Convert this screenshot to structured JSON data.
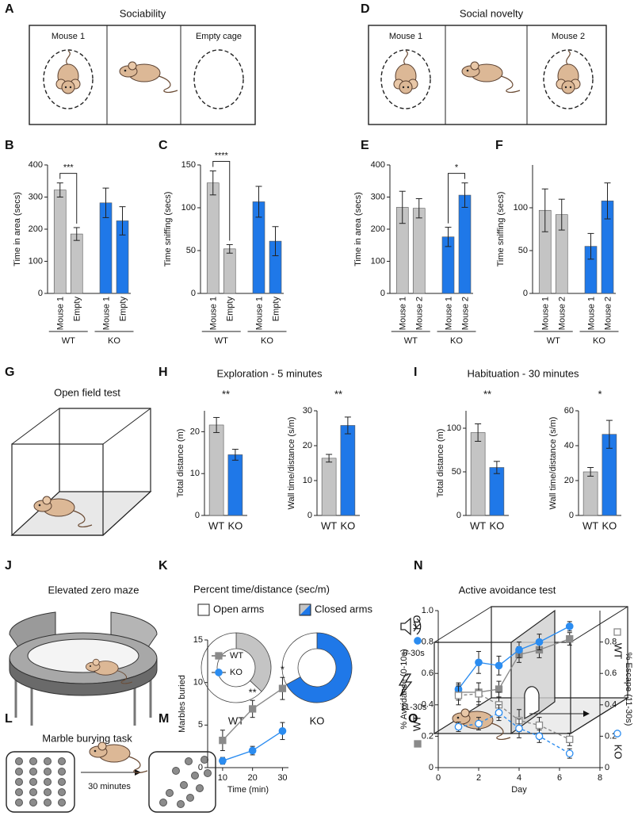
{
  "diagrams": [
    {
      "panel": "A",
      "title": "Sociability",
      "labels": [
        "Mouse 1",
        "Empty cage"
      ]
    },
    {
      "panel": "D",
      "title": "Social novelty",
      "labels": [
        "Mouse 1",
        "Mouse 2"
      ]
    },
    {
      "panel": "G",
      "title": "Open field test"
    },
    {
      "panel": "J",
      "title": "Elevated zero maze"
    },
    {
      "panel": "N",
      "title": "Active avoidance test",
      "labels": [
        "0-30s",
        "11-30s"
      ]
    },
    {
      "panel": "L",
      "title": "Marble burying task",
      "labels": [
        "30 minutes"
      ]
    }
  ],
  "chart_data": [
    {
      "panel": "B",
      "type": "bar",
      "categories": [
        "Mouse 1",
        "Empty",
        "Mouse 1",
        "Empty"
      ],
      "groups": [
        "WT",
        "KO"
      ],
      "values": [
        322,
        185,
        282,
        226
      ],
      "errors": [
        22,
        20,
        46,
        44
      ],
      "colors": [
        "#c4c4c4",
        "#c4c4c4",
        "#1f78e8",
        "#1f78e8"
      ],
      "ylabel": "Time in area (secs)",
      "ylim": [
        0,
        400
      ],
      "yticks": [
        0,
        100,
        200,
        300,
        400
      ],
      "annotations": [
        "***"
      ]
    },
    {
      "panel": "C",
      "type": "bar",
      "categories": [
        "Mouse 1",
        "Empty",
        "Mouse 1",
        "Empty"
      ],
      "groups": [
        "WT",
        "KO"
      ],
      "values": [
        129,
        52,
        107,
        61
      ],
      "errors": [
        14,
        5,
        18,
        17
      ],
      "colors": [
        "#c4c4c4",
        "#c4c4c4",
        "#1f78e8",
        "#1f78e8"
      ],
      "ylabel": "Time sniffing (secs)",
      "ylim": [
        0,
        150
      ],
      "yticks": [
        0,
        50,
        100,
        150
      ],
      "annotations": [
        "****"
      ]
    },
    {
      "panel": "E",
      "type": "bar",
      "categories": [
        "Mouse 1",
        "Mouse 2",
        "Mouse 1",
        "Mouse 2"
      ],
      "groups": [
        "WT",
        "KO"
      ],
      "values": [
        268,
        265,
        176,
        306
      ],
      "errors": [
        50,
        30,
        30,
        38
      ],
      "colors": [
        "#c4c4c4",
        "#c4c4c4",
        "#1f78e8",
        "#1f78e8"
      ],
      "ylabel": "Time in area (secs)",
      "ylim": [
        0,
        400
      ],
      "yticks": [
        0,
        100,
        200,
        300,
        400
      ],
      "annotations": [
        "*"
      ]
    },
    {
      "panel": "F",
      "type": "bar",
      "categories": [
        "Mouse 1",
        "Mouse 2",
        "Mouse 1",
        "Mouse 2"
      ],
      "groups": [
        "WT",
        "KO"
      ],
      "values": [
        97,
        92,
        55,
        108
      ],
      "errors": [
        25,
        18,
        15,
        21
      ],
      "colors": [
        "#c4c4c4",
        "#c4c4c4",
        "#1f78e8",
        "#1f78e8"
      ],
      "ylabel": "Time sniffing (secs)",
      "ylim": [
        0,
        150
      ],
      "yticks": [
        0,
        50,
        100
      ]
    },
    {
      "panel": "H",
      "type": "bar",
      "title": "Exploration - 5 minutes",
      "categories": [
        "WT",
        "KO"
      ],
      "values": [
        21.6,
        14.5
      ],
      "errors": [
        1.8,
        1.3
      ],
      "colors": [
        "#c4c4c4",
        "#1f78e8"
      ],
      "ylabel": "Total distance (m)",
      "ylim": [
        0,
        25
      ],
      "yticks": [
        0,
        10,
        20
      ],
      "annotations": [
        "**"
      ]
    },
    {
      "type": "bar",
      "categories": [
        "WT",
        "KO"
      ],
      "values": [
        16.4,
        25.8
      ],
      "errors": [
        1.1,
        2.4
      ],
      "colors": [
        "#c4c4c4",
        "#1f78e8"
      ],
      "ylabel": "Wall time/distance (s/m)",
      "ylim": [
        0,
        30
      ],
      "yticks": [
        0,
        10,
        20,
        30
      ],
      "annotations": [
        "**"
      ]
    },
    {
      "panel": "I",
      "type": "bar",
      "title": "Habituation - 30 minutes",
      "categories": [
        "WT",
        "KO"
      ],
      "values": [
        95,
        55
      ],
      "errors": [
        10,
        7
      ],
      "colors": [
        "#c4c4c4",
        "#1f78e8"
      ],
      "ylabel": "Total distance (m)",
      "ylim": [
        0,
        120
      ],
      "yticks": [
        0,
        50,
        100
      ],
      "annotations": [
        "**"
      ]
    },
    {
      "type": "bar",
      "categories": [
        "WT",
        "KO"
      ],
      "values": [
        25,
        46.5
      ],
      "errors": [
        2.5,
        8
      ],
      "colors": [
        "#c4c4c4",
        "#1f78e8"
      ],
      "ylabel": "Wall time/distance (s/m)",
      "ylim": [
        0,
        60
      ],
      "yticks": [
        0,
        20,
        40,
        60
      ],
      "annotations": [
        "*"
      ]
    },
    {
      "panel": "K",
      "type": "donut",
      "title": "Percent time/distance (sec/m)",
      "categories": [
        "Open arms",
        "Closed arms"
      ],
      "series": [
        {
          "name": "WT",
          "values": [
            63,
            37
          ],
          "colors": [
            "#ffffff",
            "#c4c4c4"
          ]
        },
        {
          "name": "KO",
          "values": [
            33,
            67
          ],
          "colors": [
            "#ffffff",
            "#1f78e8"
          ]
        }
      ]
    },
    {
      "panel": "M",
      "type": "line",
      "x": [
        10,
        20,
        30
      ],
      "xlim": [
        5,
        32
      ],
      "xticks": [
        10,
        20,
        30
      ],
      "ylim": [
        0,
        15
      ],
      "yticks": [
        0,
        5,
        10,
        15
      ],
      "xlabel": "Time (min)",
      "ylabel": "Marbles buried",
      "annotations": [
        null,
        "**",
        "*"
      ],
      "series": [
        {
          "name": "WT",
          "color": "#8a8a8a",
          "marker": "square",
          "filled": true,
          "dashed": false,
          "values": [
            3.2,
            6.9,
            9.3
          ],
          "errors": [
            1.2,
            1.0,
            1.3
          ]
        },
        {
          "name": "KO",
          "color": "#2b8cf0",
          "marker": "circle",
          "filled": true,
          "dashed": false,
          "values": [
            0.8,
            2.0,
            4.3
          ],
          "errors": [
            0.4,
            0.5,
            1.0
          ]
        }
      ]
    },
    {
      "panel": "O",
      "type": "line",
      "x": [
        1,
        2,
        3,
        4,
        5,
        6.5
      ],
      "xlim": [
        0,
        8
      ],
      "xticks": [
        0,
        2,
        4,
        6,
        8
      ],
      "ylim": [
        0,
        1
      ],
      "yticks": [
        0,
        0.2,
        0.4,
        0.6,
        0.8,
        {
          "value": 1,
          "label": "1.0"
        }
      ],
      "y2lim": [
        0,
        1
      ],
      "y2ticks": [
        0,
        0.2,
        0.4,
        0.6,
        0.8
      ],
      "xlabel": "Day",
      "ylabel": "% Avoidance (0-10s)",
      "y2label": "% Escape (11-30s)",
      "series": [
        {
          "name": "WT",
          "color": "#8a8a8a",
          "marker": "square",
          "filled": true,
          "dashed": false,
          "values": [
            0.48,
            0.48,
            0.5,
            0.72,
            0.75,
            0.82
          ],
          "errors": [
            0.05,
            0.06,
            0.05,
            0.05,
            0.05,
            0.04
          ]
        },
        {
          "name": "KO",
          "color": "#2b8cf0",
          "marker": "circle",
          "filled": true,
          "dashed": false,
          "values": [
            0.5,
            0.67,
            0.65,
            0.75,
            0.8,
            0.9
          ],
          "errors": [
            0.04,
            0.07,
            0.06,
            0.05,
            0.05,
            0.03
          ]
        },
        {
          "name": "WT",
          "color": "#8a8a8a",
          "marker": "square",
          "filled": false,
          "dashed": true,
          "axis": "y2",
          "values": [
            0.46,
            0.47,
            0.4,
            0.3,
            0.27,
            0.18
          ],
          "errors": [
            0.06,
            0.07,
            0.08,
            0.07,
            0.05,
            0.04
          ]
        },
        {
          "name": "KO",
          "color": "#2b8cf0",
          "marker": "circle",
          "filled": false,
          "dashed": true,
          "axis": "y2",
          "values": [
            0.26,
            0.28,
            0.35,
            0.25,
            0.2,
            0.09
          ],
          "errors": [
            0.03,
            0.04,
            0.05,
            0.06,
            0.04,
            0.03
          ]
        }
      ]
    }
  ]
}
